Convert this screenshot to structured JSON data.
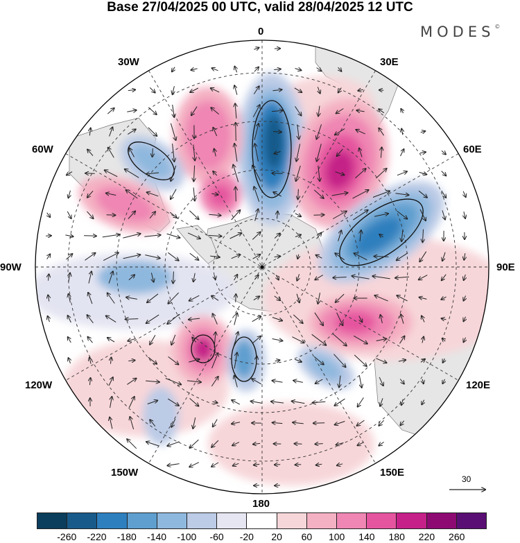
{
  "title": "Base 27/04/2025 00 UTC, valid 28/04/2025 12 UTC",
  "brand": "MODES",
  "brand_mark": "©",
  "longitude_labels": {
    "lon_0": "0",
    "lon_30e": "30E",
    "lon_60e": "60E",
    "lon_90e": "90E",
    "lon_120e": "120E",
    "lon_150e": "150E",
    "lon_180": "180",
    "lon_150w": "150W",
    "lon_120w": "120W",
    "lon_90w": "90W",
    "lon_60w": "60W",
    "lon_30w": "30W"
  },
  "reference_vector": {
    "value": "30"
  },
  "colorbar": {
    "colors": [
      "#0b3d5c",
      "#185a8a",
      "#2e7fbe",
      "#5e9fcf",
      "#8fb8de",
      "#bccbe6",
      "#e5e6f2",
      "#ffffff",
      "#f7d6d9",
      "#f4b1c3",
      "#ef86b3",
      "#e5559f",
      "#c52188",
      "#8d0a73",
      "#5a0f74"
    ],
    "ticks": [
      "-260",
      "-220",
      "-180",
      "-140",
      "-100",
      "-60",
      "-20",
      "20",
      "60",
      "100",
      "140",
      "180",
      "220",
      "260"
    ]
  },
  "map": {
    "projection": "south polar stereographic",
    "anomaly_features": [
      {
        "sign": "negative",
        "level": "-180",
        "region": "0 meridian, mid-latitudes"
      },
      {
        "sign": "positive",
        "level": "220",
        "region": "30E-45E"
      },
      {
        "sign": "negative",
        "level": "-180",
        "region": "60E-90E"
      },
      {
        "sign": "positive",
        "level": "180",
        "region": "90E-120E"
      },
      {
        "sign": "negative",
        "level": "-100",
        "region": "130E"
      },
      {
        "sign": "positive",
        "level": "140",
        "region": "20W"
      },
      {
        "sign": "positive",
        "level": "180",
        "region": "45W"
      },
      {
        "sign": "negative",
        "level": "-100",
        "region": "45W"
      },
      {
        "sign": "positive",
        "level": "140",
        "region": "65W"
      },
      {
        "sign": "negative",
        "level": "-100",
        "region": "90W"
      },
      {
        "sign": "positive",
        "level": "220",
        "region": "125W"
      },
      {
        "sign": "negative",
        "level": "-140",
        "region": "145W"
      },
      {
        "sign": "negative",
        "level": "-60",
        "region": "140W"
      }
    ]
  }
}
